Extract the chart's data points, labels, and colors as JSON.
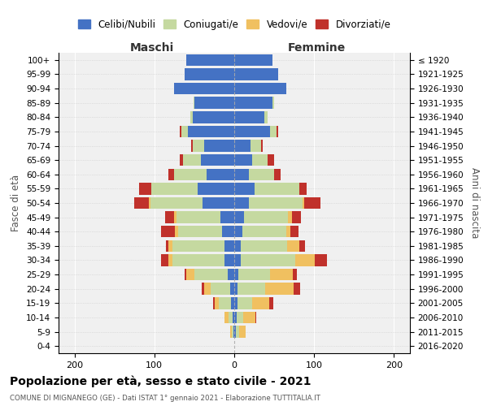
{
  "age_groups": [
    "0-4",
    "5-9",
    "10-14",
    "15-19",
    "20-24",
    "25-29",
    "30-34",
    "35-39",
    "40-44",
    "45-49",
    "50-54",
    "55-59",
    "60-64",
    "65-69",
    "70-74",
    "75-79",
    "80-84",
    "85-89",
    "90-94",
    "95-99",
    "100+"
  ],
  "birth_years": [
    "2016-2020",
    "2011-2015",
    "2006-2010",
    "2001-2005",
    "1996-2000",
    "1991-1995",
    "1986-1990",
    "1981-1985",
    "1976-1980",
    "1971-1975",
    "1966-1970",
    "1961-1965",
    "1956-1960",
    "1951-1955",
    "1946-1950",
    "1941-1945",
    "1936-1940",
    "1931-1935",
    "1926-1930",
    "1921-1925",
    "≤ 1920"
  ],
  "male": {
    "celibi": [
      60,
      62,
      75,
      50,
      52,
      58,
      38,
      42,
      35,
      46,
      40,
      17,
      15,
      12,
      12,
      8,
      5,
      4,
      2,
      1,
      0
    ],
    "coniugati": [
      0,
      0,
      0,
      1,
      3,
      8,
      14,
      22,
      40,
      58,
      65,
      55,
      55,
      65,
      65,
      42,
      25,
      15,
      5,
      2,
      0
    ],
    "vedovi": [
      0,
      0,
      0,
      0,
      0,
      0,
      0,
      0,
      0,
      0,
      2,
      3,
      4,
      5,
      5,
      10,
      8,
      5,
      5,
      2,
      0
    ],
    "divorziati": [
      0,
      0,
      0,
      0,
      0,
      2,
      2,
      4,
      8,
      15,
      18,
      12,
      18,
      4,
      10,
      2,
      3,
      2,
      0,
      0,
      0
    ]
  },
  "female": {
    "nubili": [
      48,
      55,
      65,
      48,
      38,
      45,
      20,
      22,
      18,
      25,
      18,
      12,
      10,
      8,
      8,
      5,
      4,
      4,
      3,
      2,
      0
    ],
    "coniugate": [
      0,
      0,
      0,
      2,
      4,
      8,
      14,
      20,
      32,
      56,
      68,
      55,
      55,
      58,
      68,
      40,
      35,
      18,
      8,
      4,
      0
    ],
    "vedove": [
      0,
      0,
      0,
      0,
      0,
      0,
      0,
      0,
      0,
      0,
      2,
      5,
      5,
      15,
      25,
      28,
      35,
      22,
      15,
      8,
      0
    ],
    "divorziate": [
      0,
      0,
      0,
      0,
      0,
      2,
      2,
      8,
      8,
      10,
      20,
      12,
      10,
      8,
      15,
      5,
      8,
      5,
      2,
      0,
      0
    ]
  },
  "colors": {
    "celibi": "#4472c4",
    "coniugati": "#c5d9a0",
    "vedovi": "#f0c060",
    "divorziati": "#c0312b"
  },
  "xlim": 220,
  "title": "Popolazione per età, sesso e stato civile - 2021",
  "subtitle": "COMUNE DI MIGNANEGO (GE) - Dati ISTAT 1° gennaio 2021 - Elaborazione TUTTITALIA.IT",
  "ylabel_left": "Fasce di età",
  "ylabel_right": "Anni di nascita",
  "xlabel_left": "Maschi",
  "xlabel_right": "Femmine",
  "bg_color": "#f0f0f0",
  "legend_labels": [
    "Celibi/Nubili",
    "Coniugati/e",
    "Vedovi/e",
    "Divorziati/e"
  ]
}
